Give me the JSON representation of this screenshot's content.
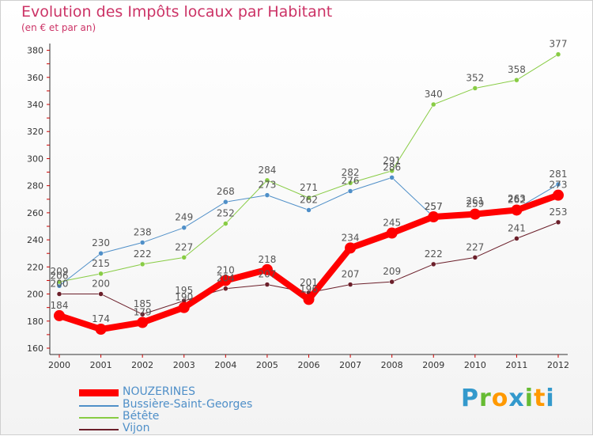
{
  "title": "Evolution des Impôts locaux par Habitant",
  "subtitle": "(en € et par an)",
  "brand": {
    "letters": [
      "P",
      "r",
      "o",
      "x",
      "i",
      "t",
      "i"
    ],
    "colors": [
      "#3399cc",
      "#66bb33",
      "#ff9900",
      "#3399cc",
      "#66bb33",
      "#ff9900",
      "#3399cc"
    ]
  },
  "chart_data": {
    "type": "line",
    "x": [
      "2000",
      "2001",
      "2002",
      "2003",
      "2004",
      "2005",
      "2006",
      "2007",
      "2008",
      "2009",
      "2010",
      "2011",
      "2012"
    ],
    "ylim": [
      160,
      385
    ],
    "yticks": [
      160,
      180,
      200,
      220,
      240,
      260,
      280,
      300,
      320,
      340,
      360,
      380
    ],
    "grid": false,
    "legend": "bottom-left",
    "series": [
      {
        "name": "Vijon",
        "color": "#6b1f2a",
        "width": 1,
        "values": [
          200,
          200,
          185,
          195,
          204,
          207,
          201,
          207,
          209,
          222,
          227,
          241,
          253
        ]
      },
      {
        "name": "Bussière-Saint-Georges",
        "color": "#4f8fc8",
        "width": 1,
        "values": [
          206,
          230,
          238,
          249,
          268,
          273,
          262,
          276,
          286,
          257,
          261,
          263,
          281
        ]
      },
      {
        "name": "Bétête",
        "color": "#88cc44",
        "width": 1,
        "values": [
          209,
          215,
          222,
          227,
          252,
          284,
          271,
          282,
          291,
          340,
          352,
          358,
          377
        ]
      },
      {
        "name": "NOUZERINES",
        "color": "#ff0000",
        "width": 8,
        "values": [
          184,
          174,
          179,
          190,
          210,
          218,
          196,
          234,
          245,
          257,
          259,
          262,
          273
        ]
      }
    ]
  },
  "legend_items": [
    {
      "name": "NOUZERINES",
      "color": "#ff0000"
    },
    {
      "name": "Bussière-Saint-Georges",
      "color": "#4f8fc8"
    },
    {
      "name": "Bétête",
      "color": "#88cc44"
    },
    {
      "name": "Vijon",
      "color": "#6b1f2a"
    }
  ]
}
